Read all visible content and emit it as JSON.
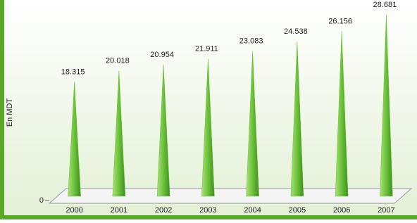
{
  "chart_data": {
    "type": "spike",
    "y_label": "En MDT",
    "categories": [
      "2000",
      "2001",
      "2002",
      "2003",
      "2004",
      "2005",
      "2006",
      "2007"
    ],
    "values": [
      18.315,
      20.018,
      20.954,
      21.911,
      23.083,
      24.538,
      26.156,
      28.681
    ],
    "color": "#6cc13a",
    "ylim": [
      0,
      30
    ],
    "yticks": [
      0
    ]
  }
}
